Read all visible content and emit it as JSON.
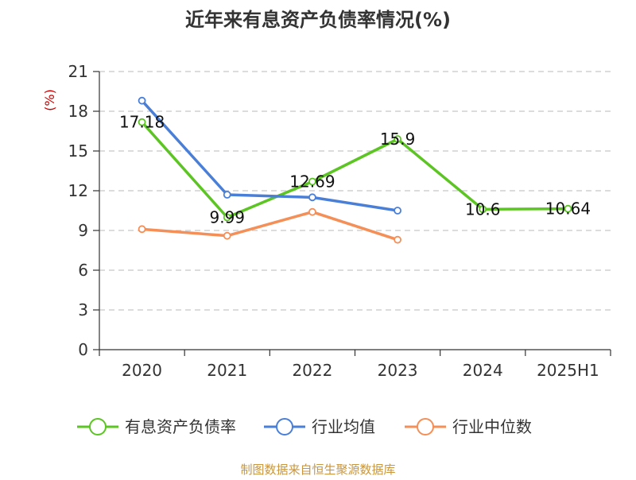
{
  "chart_data": {
    "type": "line",
    "title": "近年来有息资产负债率情况(%)",
    "ylabel": "(%)",
    "categories": [
      "2020",
      "2021",
      "2022",
      "2023",
      "2024",
      "2025H1"
    ],
    "ylim": [
      0,
      21
    ],
    "yticks": [
      0,
      3,
      6,
      9,
      12,
      15,
      18,
      21
    ],
    "grid": true,
    "legend_position": "bottom",
    "series": [
      {
        "name": "有息资产负债率",
        "color": "#5cc523",
        "values": [
          17.18,
          9.99,
          12.69,
          15.9,
          10.6,
          10.64
        ],
        "data_labels": [
          "17.18",
          "9.99",
          "12.69",
          "15.9",
          "10.6",
          "10.64"
        ]
      },
      {
        "name": "行业均值",
        "color": "#4a7fd8",
        "values": [
          18.8,
          11.7,
          11.5,
          10.5,
          null,
          null
        ]
      },
      {
        "name": "行业中位数",
        "color": "#f58f58",
        "values": [
          9.1,
          8.6,
          10.4,
          8.3,
          null,
          null
        ]
      }
    ],
    "source": "制图数据来自恒生聚源数据库"
  }
}
